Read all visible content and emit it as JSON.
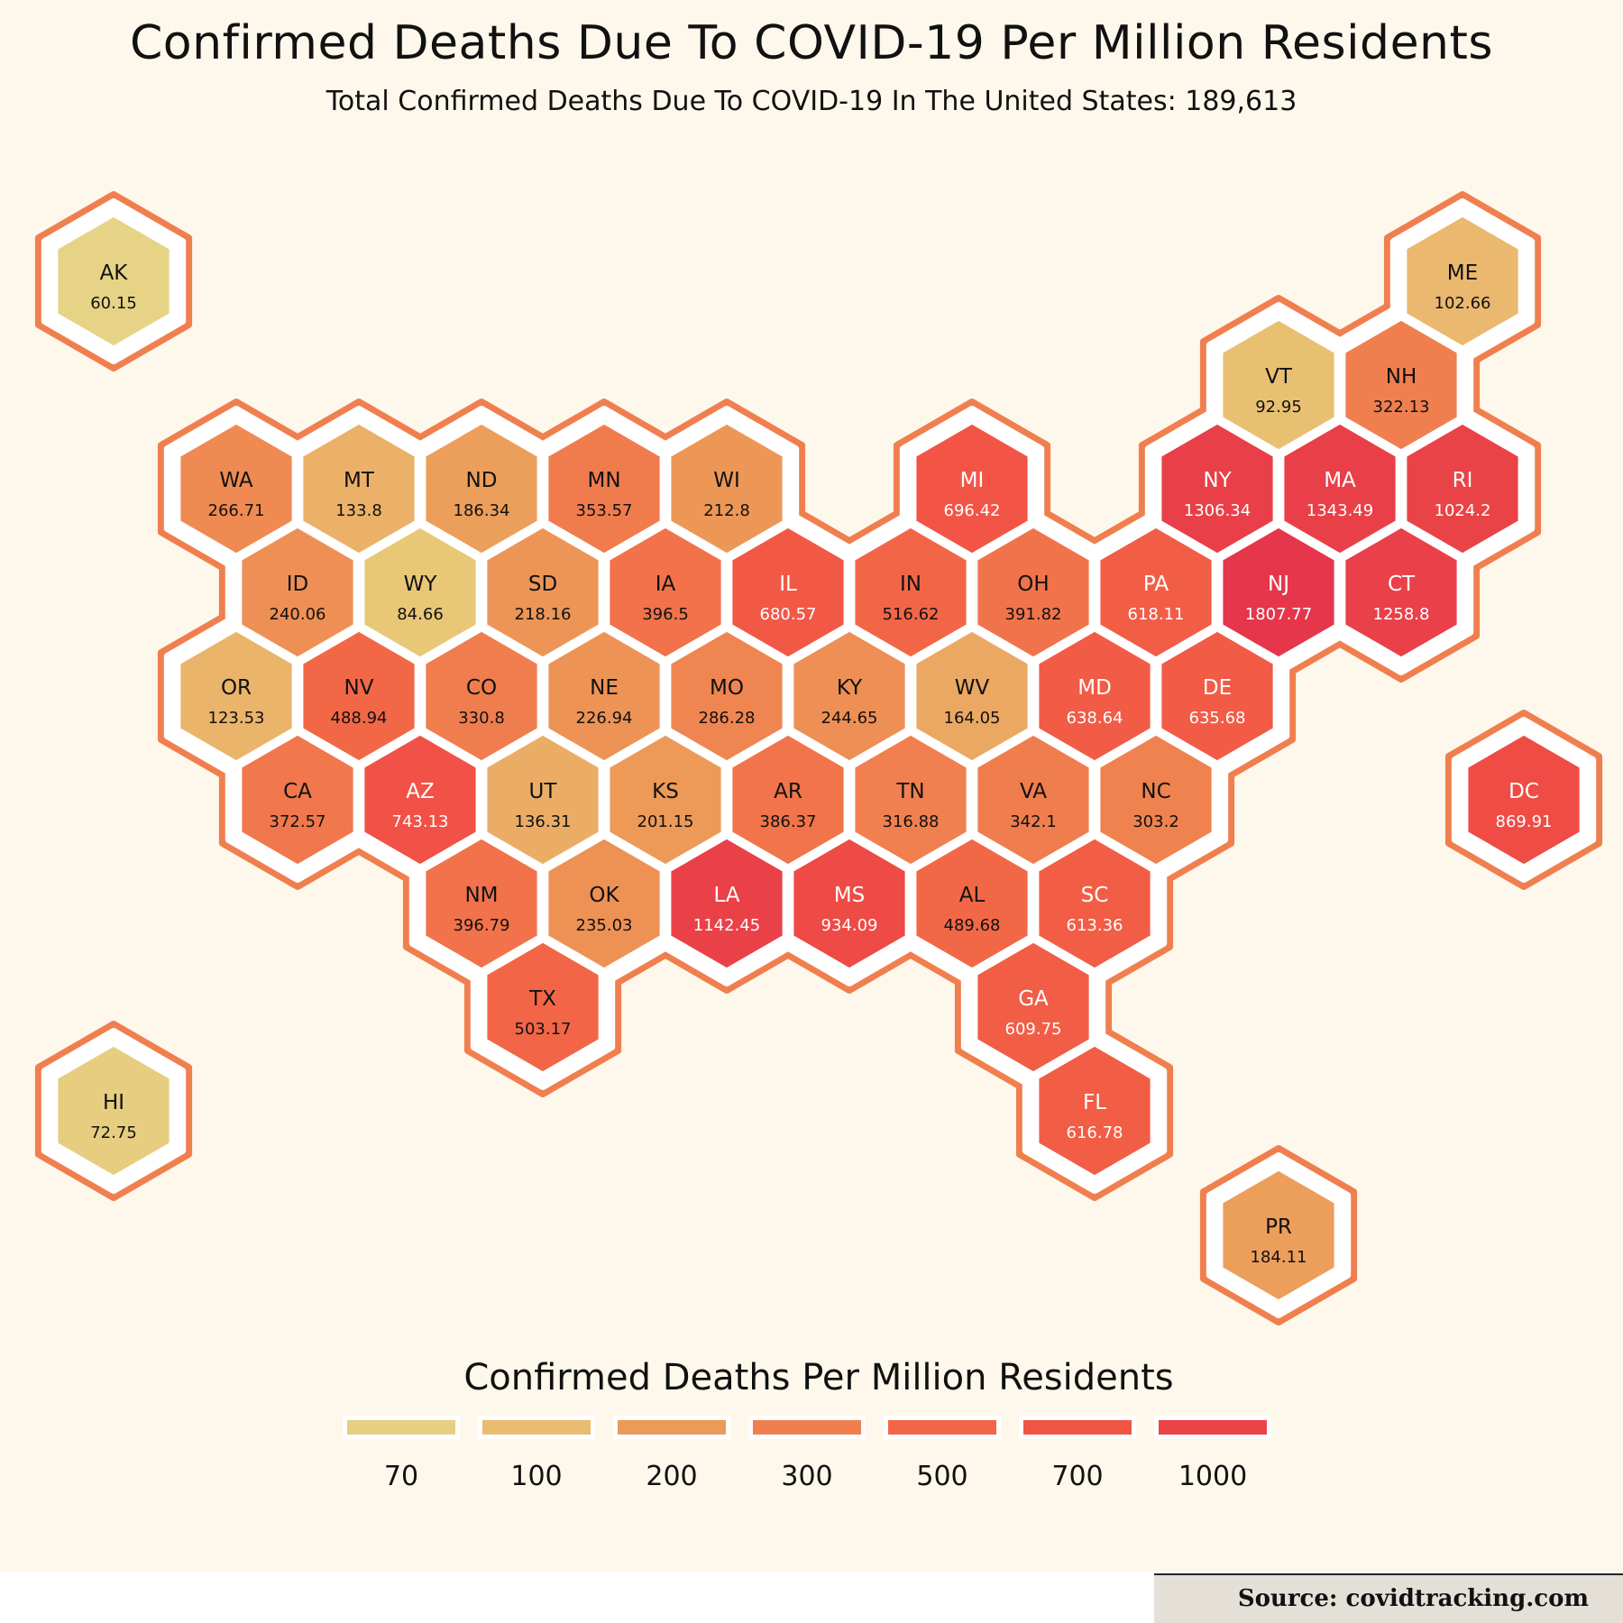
{
  "title": "Confirmed Deaths Due To COVID-19 Per Million Residents",
  "subtitle": "Total Confirmed Deaths Due To COVID-19 In The United States: 189,613",
  "legend": {
    "title": "Confirmed Deaths Per Million Residents",
    "breaks": [
      {
        "label": "70",
        "color": "#e6cf82"
      },
      {
        "label": "100",
        "color": "#e9bc6f"
      },
      {
        "label": "200",
        "color": "#ec9a58"
      },
      {
        "label": "300",
        "color": "#f07f4f"
      },
      {
        "label": "500",
        "color": "#f26647"
      },
      {
        "label": "700",
        "color": "#f05445"
      },
      {
        "label": "1000",
        "color": "#ec4349"
      }
    ]
  },
  "source": "Source: covidtracking.com",
  "chart_data": {
    "type": "hex-tile-map",
    "states": [
      {
        "abbr": "AK",
        "value": "60.15",
        "color": "#e6d385",
        "row": -2,
        "col": 0
      },
      {
        "abbr": "ME",
        "value": "102.66",
        "color": "#eab86e",
        "row": -2,
        "col": 11
      },
      {
        "abbr": "VT",
        "value": "92.95",
        "color": "#e9c072",
        "row": -1,
        "col": 9.5
      },
      {
        "abbr": "NH",
        "value": "322.13",
        "color": "#f07f4f",
        "row": -1,
        "col": 10.5
      },
      {
        "abbr": "WA",
        "value": "266.71",
        "color": "#ef8a52",
        "row": 0,
        "col": 1
      },
      {
        "abbr": "MT",
        "value": "133.8",
        "color": "#ebb168",
        "row": 0,
        "col": 2
      },
      {
        "abbr": "ND",
        "value": "186.34",
        "color": "#ec9e5b",
        "row": 0,
        "col": 3
      },
      {
        "abbr": "MN",
        "value": "353.57",
        "color": "#f07c4e",
        "row": 0,
        "col": 4
      },
      {
        "abbr": "WI",
        "value": "212.8",
        "color": "#ed9757",
        "row": 0,
        "col": 5
      },
      {
        "abbr": "MI",
        "value": "696.42",
        "color": "#f25546",
        "row": 0,
        "col": 7
      },
      {
        "abbr": "NY",
        "value": "1306.34",
        "color": "#e93f48",
        "row": 0,
        "col": 9
      },
      {
        "abbr": "MA",
        "value": "1343.49",
        "color": "#e93f48",
        "row": 0,
        "col": 10
      },
      {
        "abbr": "RI",
        "value": "1024.2",
        "color": "#ea4347",
        "row": 0,
        "col": 11
      },
      {
        "abbr": "ID",
        "value": "240.06",
        "color": "#ee9055",
        "row": 1,
        "col": 1.5
      },
      {
        "abbr": "WY",
        "value": "84.66",
        "color": "#e8c777",
        "row": 1,
        "col": 2.5
      },
      {
        "abbr": "SD",
        "value": "218.16",
        "color": "#ed9557",
        "row": 1,
        "col": 3.5
      },
      {
        "abbr": "IA",
        "value": "396.5",
        "color": "#f1724b",
        "row": 1,
        "col": 4.5
      },
      {
        "abbr": "IL",
        "value": "680.57",
        "color": "#f25846",
        "row": 1,
        "col": 5.5
      },
      {
        "abbr": "IN",
        "value": "516.62",
        "color": "#f26647",
        "row": 1,
        "col": 6.5
      },
      {
        "abbr": "OH",
        "value": "391.82",
        "color": "#f1734b",
        "row": 1,
        "col": 7.5
      },
      {
        "abbr": "PA",
        "value": "618.11",
        "color": "#f25d46",
        "row": 1,
        "col": 8.5
      },
      {
        "abbr": "NJ",
        "value": "1807.77",
        "color": "#e5364c",
        "row": 1,
        "col": 9.5
      },
      {
        "abbr": "CT",
        "value": "1258.8",
        "color": "#e9404a",
        "row": 1,
        "col": 10.5
      },
      {
        "abbr": "OR",
        "value": "123.53",
        "color": "#eab46b",
        "row": 2,
        "col": 1
      },
      {
        "abbr": "NV",
        "value": "488.94",
        "color": "#f26847",
        "row": 2,
        "col": 2
      },
      {
        "abbr": "CO",
        "value": "330.8",
        "color": "#f07d4e",
        "row": 2,
        "col": 3
      },
      {
        "abbr": "NE",
        "value": "226.94",
        "color": "#ed9356",
        "row": 2,
        "col": 4
      },
      {
        "abbr": "MO",
        "value": "286.28",
        "color": "#ef8551",
        "row": 2,
        "col": 5
      },
      {
        "abbr": "KY",
        "value": "244.65",
        "color": "#ee8f55",
        "row": 2,
        "col": 6
      },
      {
        "abbr": "WV",
        "value": "164.05",
        "color": "#eba862",
        "row": 2,
        "col": 7
      },
      {
        "abbr": "MD",
        "value": "638.64",
        "color": "#f25b46",
        "row": 2,
        "col": 8
      },
      {
        "abbr": "DE",
        "value": "635.68",
        "color": "#f25b46",
        "row": 2,
        "col": 9
      },
      {
        "abbr": "DC",
        "value": "869.91",
        "color": "#ef4c45",
        "row": 3,
        "col": 11.5
      },
      {
        "abbr": "CA",
        "value": "372.57",
        "color": "#f1774c",
        "row": 3,
        "col": 1.5
      },
      {
        "abbr": "AZ",
        "value": "743.13",
        "color": "#f15146",
        "row": 3,
        "col": 2.5
      },
      {
        "abbr": "UT",
        "value": "136.31",
        "color": "#ebad66",
        "row": 3,
        "col": 3.5
      },
      {
        "abbr": "KS",
        "value": "201.15",
        "color": "#ed9a58",
        "row": 3,
        "col": 4.5
      },
      {
        "abbr": "AR",
        "value": "386.37",
        "color": "#f1744b",
        "row": 3,
        "col": 5.5
      },
      {
        "abbr": "TN",
        "value": "316.88",
        "color": "#f0804f",
        "row": 3,
        "col": 6.5
      },
      {
        "abbr": "VA",
        "value": "342.1",
        "color": "#f07d4e",
        "row": 3,
        "col": 7.5
      },
      {
        "abbr": "NC",
        "value": "303.2",
        "color": "#ef824f",
        "row": 3,
        "col": 8.5
      },
      {
        "abbr": "NM",
        "value": "396.79",
        "color": "#f1724b",
        "row": 4,
        "col": 3
      },
      {
        "abbr": "OK",
        "value": "235.03",
        "color": "#ee9155",
        "row": 4,
        "col": 4
      },
      {
        "abbr": "LA",
        "value": "1142.45",
        "color": "#ea4148",
        "row": 4,
        "col": 5
      },
      {
        "abbr": "MS",
        "value": "934.09",
        "color": "#ee4a46",
        "row": 4,
        "col": 6
      },
      {
        "abbr": "AL",
        "value": "489.68",
        "color": "#f26847",
        "row": 4,
        "col": 7
      },
      {
        "abbr": "SC",
        "value": "613.36",
        "color": "#f25d46",
        "row": 4,
        "col": 8
      },
      {
        "abbr": "TX",
        "value": "503.17",
        "color": "#f26647",
        "row": 5,
        "col": 3.5
      },
      {
        "abbr": "GA",
        "value": "609.75",
        "color": "#f25d46",
        "row": 5,
        "col": 7.5
      },
      {
        "abbr": "HI",
        "value": "72.75",
        "color": "#e6cd7f",
        "row": 6,
        "col": 0
      },
      {
        "abbr": "FL",
        "value": "616.78",
        "color": "#f25d46",
        "row": 6,
        "col": 8
      },
      {
        "abbr": "PR",
        "value": "184.11",
        "color": "#ec9e5b",
        "row": 7.2,
        "col": 9.5
      }
    ]
  }
}
